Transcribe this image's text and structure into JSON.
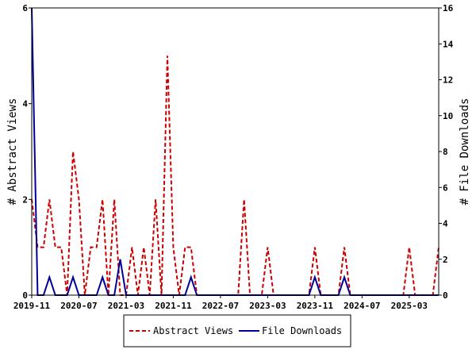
{
  "chart_data": {
    "type": "line",
    "xlabel": "",
    "ylabel_left": "# Abstract Views",
    "ylabel_right": "# File Downloads",
    "x_range": [
      "2019-11",
      "2025-08"
    ],
    "ylim_left": [
      0,
      6
    ],
    "ylim_right": [
      0,
      16
    ],
    "yticks_left": [
      0,
      2,
      4,
      6
    ],
    "yticks_right": [
      0,
      2,
      4,
      6,
      8,
      10,
      12,
      14,
      16
    ],
    "x_tick_labels": [
      "2019-11",
      "2020-07",
      "2021-03",
      "2021-11",
      "2022-07",
      "2023-03",
      "2023-11",
      "2024-07",
      "2025-03"
    ],
    "grid": false,
    "legend_position": "bottom",
    "x": [
      "2019-11",
      "2019-12",
      "2020-01",
      "2020-02",
      "2020-03",
      "2020-04",
      "2020-05",
      "2020-06",
      "2020-07",
      "2020-08",
      "2020-09",
      "2020-10",
      "2020-11",
      "2020-12",
      "2021-01",
      "2021-02",
      "2021-03",
      "2021-04",
      "2021-05",
      "2021-06",
      "2021-07",
      "2021-08",
      "2021-09",
      "2021-10",
      "2021-11",
      "2021-12",
      "2022-01",
      "2022-02",
      "2022-03",
      "2022-04",
      "2022-05",
      "2022-06",
      "2022-07",
      "2022-08",
      "2022-09",
      "2022-10",
      "2022-11",
      "2022-12",
      "2023-01",
      "2023-02",
      "2023-03",
      "2023-04",
      "2023-05",
      "2023-06",
      "2023-07",
      "2023-08",
      "2023-09",
      "2023-10",
      "2023-11",
      "2023-12",
      "2024-01",
      "2024-02",
      "2024-03",
      "2024-04",
      "2024-05",
      "2024-06",
      "2024-07",
      "2024-08",
      "2024-09",
      "2024-10",
      "2024-11",
      "2024-12",
      "2025-01",
      "2025-02",
      "2025-03",
      "2025-04",
      "2025-05",
      "2025-06",
      "2025-07",
      "2025-08"
    ],
    "series": [
      {
        "name": "Abstract Views",
        "axis": "left",
        "color": "#cc0000",
        "dash": true,
        "values": [
          2,
          1,
          1,
          2,
          1,
          1,
          0,
          3,
          2,
          0,
          1,
          1,
          2,
          0,
          2,
          0,
          0,
          1,
          0,
          1,
          0,
          2,
          0,
          5,
          1,
          0,
          1,
          1,
          0,
          0,
          0,
          0,
          0,
          0,
          0,
          0,
          2,
          0,
          0,
          0,
          1,
          0,
          0,
          0,
          0,
          0,
          0,
          0,
          1,
          0,
          0,
          0,
          0,
          1,
          0,
          0,
          0,
          0,
          0,
          0,
          0,
          0,
          0,
          0,
          1,
          0,
          0,
          0,
          0,
          1
        ]
      },
      {
        "name": "File Downloads",
        "axis": "right",
        "color": "#000099",
        "dash": false,
        "values": [
          16,
          0,
          0,
          1,
          0,
          0,
          0,
          1,
          0,
          0,
          0,
          0,
          1,
          0,
          0,
          2,
          0,
          0,
          0,
          0,
          0,
          0,
          0,
          0,
          0,
          0,
          0,
          1,
          0,
          0,
          0,
          0,
          0,
          0,
          0,
          0,
          0,
          0,
          0,
          0,
          0,
          0,
          0,
          0,
          0,
          0,
          0,
          0,
          1,
          0,
          0,
          0,
          0,
          1,
          0,
          0,
          0,
          0,
          0,
          0,
          0,
          0,
          0,
          0,
          0,
          0,
          0,
          0,
          0,
          0
        ]
      }
    ]
  }
}
